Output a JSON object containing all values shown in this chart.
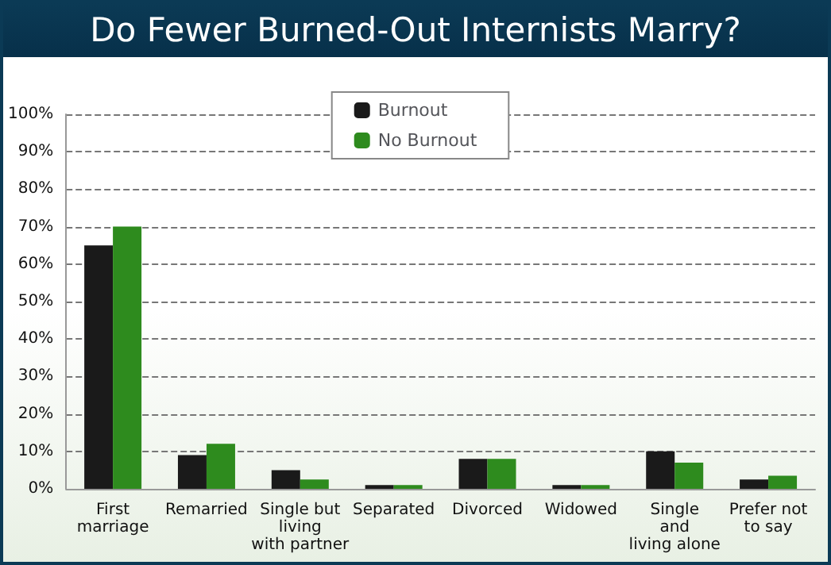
{
  "chart_data": {
    "type": "bar",
    "title": "Do Fewer Burned-Out Internists Marry?",
    "categories": [
      "First\nmarriage",
      "Remarried",
      "Single but\nliving\nwith partner",
      "Separated",
      "Divorced",
      "Widowed",
      "Single\nand\nliving alone",
      "Prefer not\nto say"
    ],
    "series": [
      {
        "name": "Burnout",
        "color": "#1a1a1a",
        "values": [
          65,
          9,
          5,
          1,
          8,
          1,
          10,
          2.5
        ]
      },
      {
        "name": "No Burnout",
        "color": "#2e8b1e",
        "values": [
          70,
          12,
          2.5,
          1,
          8,
          1,
          7,
          3.5
        ]
      }
    ],
    "ylim": [
      0,
      100
    ],
    "yticks": [
      {
        "value": 0,
        "label": "0%"
      },
      {
        "value": 10,
        "label": "10%"
      },
      {
        "value": 20,
        "label": "20%"
      },
      {
        "value": 30,
        "label": "30%"
      },
      {
        "value": 40,
        "label": "40%"
      },
      {
        "value": 50,
        "label": "50%"
      },
      {
        "value": 60,
        "label": "60%"
      },
      {
        "value": 70,
        "label": "70%"
      },
      {
        "value": 80,
        "label": "80%"
      },
      {
        "value": 90,
        "label": "90%"
      },
      {
        "value": 100,
        "label": "100%"
      }
    ],
    "grid": "y",
    "legend": "top"
  }
}
